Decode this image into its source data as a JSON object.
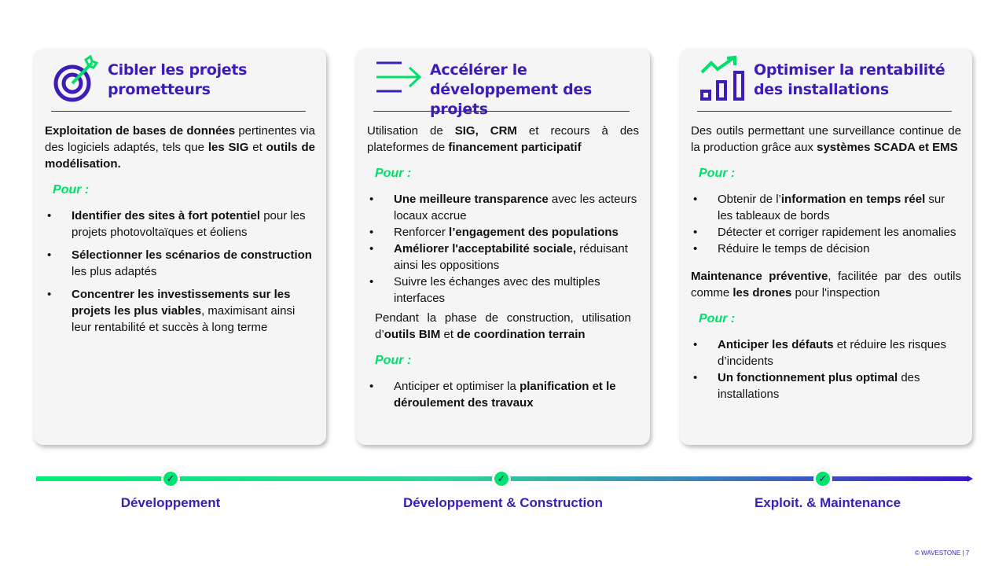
{
  "colors": {
    "accent": "#3d1db5",
    "green": "#00e06a"
  },
  "cards": [
    {
      "title": "Cibler les projets prometteurs",
      "icon": "target-arrow-icon",
      "blocks": [
        {
          "type": "p",
          "segs": [
            {
              "t": "Exploitation de bases de données",
              "b": true
            },
            {
              "t": " pertinentes via des logiciels adaptés, tels que "
            },
            {
              "t": "les SIG",
              "b": true
            },
            {
              "t": " et "
            },
            {
              "t": "outils de modélisation.",
              "b": true
            }
          ]
        },
        {
          "type": "pour",
          "text": "Pour :"
        },
        {
          "type": "ul",
          "spaced": true,
          "items": [
            [
              {
                "t": "Identifier des sites à fort potentiel",
                "b": true
              },
              {
                "t": " pour les projets photovoltaïques et éoliens"
              }
            ],
            [
              {
                "t": "Sélectionner les scénarios de construction",
                "b": true
              },
              {
                "t": " les plus adaptés"
              }
            ],
            [
              {
                "t": "Concentrer les investissements sur les projets les plus viables",
                "b": true
              },
              {
                "t": ", maximisant ainsi leur rentabilité et succès à long terme"
              }
            ]
          ]
        }
      ]
    },
    {
      "title": "Accélérer le développement des projets",
      "icon": "arrow-right-lines-icon",
      "blocks": [
        {
          "type": "p",
          "segs": [
            {
              "t": "Utilisation de "
            },
            {
              "t": "SIG, CRM",
              "b": true
            },
            {
              "t": " et recours à des plateformes de "
            },
            {
              "t": "financement participatif",
              "b": true
            }
          ]
        },
        {
          "type": "pour",
          "text": "Pour :"
        },
        {
          "type": "ul",
          "items": [
            [
              {
                "t": "Une meilleure transparence",
                "b": true
              },
              {
                "t": " avec les acteurs locaux accrue"
              }
            ],
            [
              {
                "t": "Renforcer "
              },
              {
                "t": "l’engagement des populations",
                "b": true
              }
            ],
            [
              {
                "t": "Améliorer l'acceptabilité sociale,",
                "b": true
              },
              {
                "t": " réduisant ainsi les oppositions"
              }
            ],
            [
              {
                "t": "Suivre les échanges avec des multiples interfaces"
              }
            ]
          ]
        },
        {
          "type": "p",
          "indent": true,
          "segs": [
            {
              "t": "Pendant la phase de construction, utilisation d’"
            },
            {
              "t": "outils BIM",
              "b": true
            },
            {
              "t": " et "
            },
            {
              "t": "de coordination terrain",
              "b": true
            }
          ]
        },
        {
          "type": "pour",
          "text": "Pour :"
        },
        {
          "type": "ul",
          "items": [
            [
              {
                "t": "Anticiper et optimiser la "
              },
              {
                "t": "planification et le déroulement des travaux",
                "b": true
              }
            ]
          ]
        }
      ]
    },
    {
      "title": "Optimiser la rentabilité des installations",
      "icon": "growth-chart-icon",
      "blocks": [
        {
          "type": "p",
          "segs": [
            {
              "t": "Des outils permettant une surveillance continue de la production grâce aux "
            },
            {
              "t": "systèmes SCADA et EMS",
              "b": true
            }
          ]
        },
        {
          "type": "pour",
          "text": "Pour :"
        },
        {
          "type": "ul",
          "items": [
            [
              {
                "t": "Obtenir de l’"
              },
              {
                "t": "information en temps réel",
                "b": true
              },
              {
                "t": " sur les tableaux de bords"
              }
            ],
            [
              {
                "t": "Détecter  et corriger rapidement les anomalies"
              }
            ],
            [
              {
                "t": "Réduire le temps de décision"
              }
            ]
          ]
        },
        {
          "type": "p",
          "segs": [
            {
              "t": "Maintenance préventive",
              "b": true
            },
            {
              "t": ", facilitée par des outils comme "
            },
            {
              "t": "les drones",
              "b": true
            },
            {
              "t": " pour l'inspection"
            }
          ]
        },
        {
          "type": "pour",
          "text": "Pour :"
        },
        {
          "type": "ul",
          "items": [
            [
              {
                "t": "Anticiper les défauts",
                "b": true
              },
              {
                "t": " et réduire les risques d’incidents"
              }
            ],
            [
              {
                "t": "Un fonctionnement plus optimal",
                "b": true
              },
              {
                "t": " des installations"
              }
            ]
          ]
        }
      ]
    }
  ],
  "timeline": {
    "phases": [
      "Développement",
      "Développement & Construction",
      "Exploit. & Maintenance"
    ],
    "check_icon": "check-icon"
  },
  "footer": "© WAVESTONE | 7"
}
